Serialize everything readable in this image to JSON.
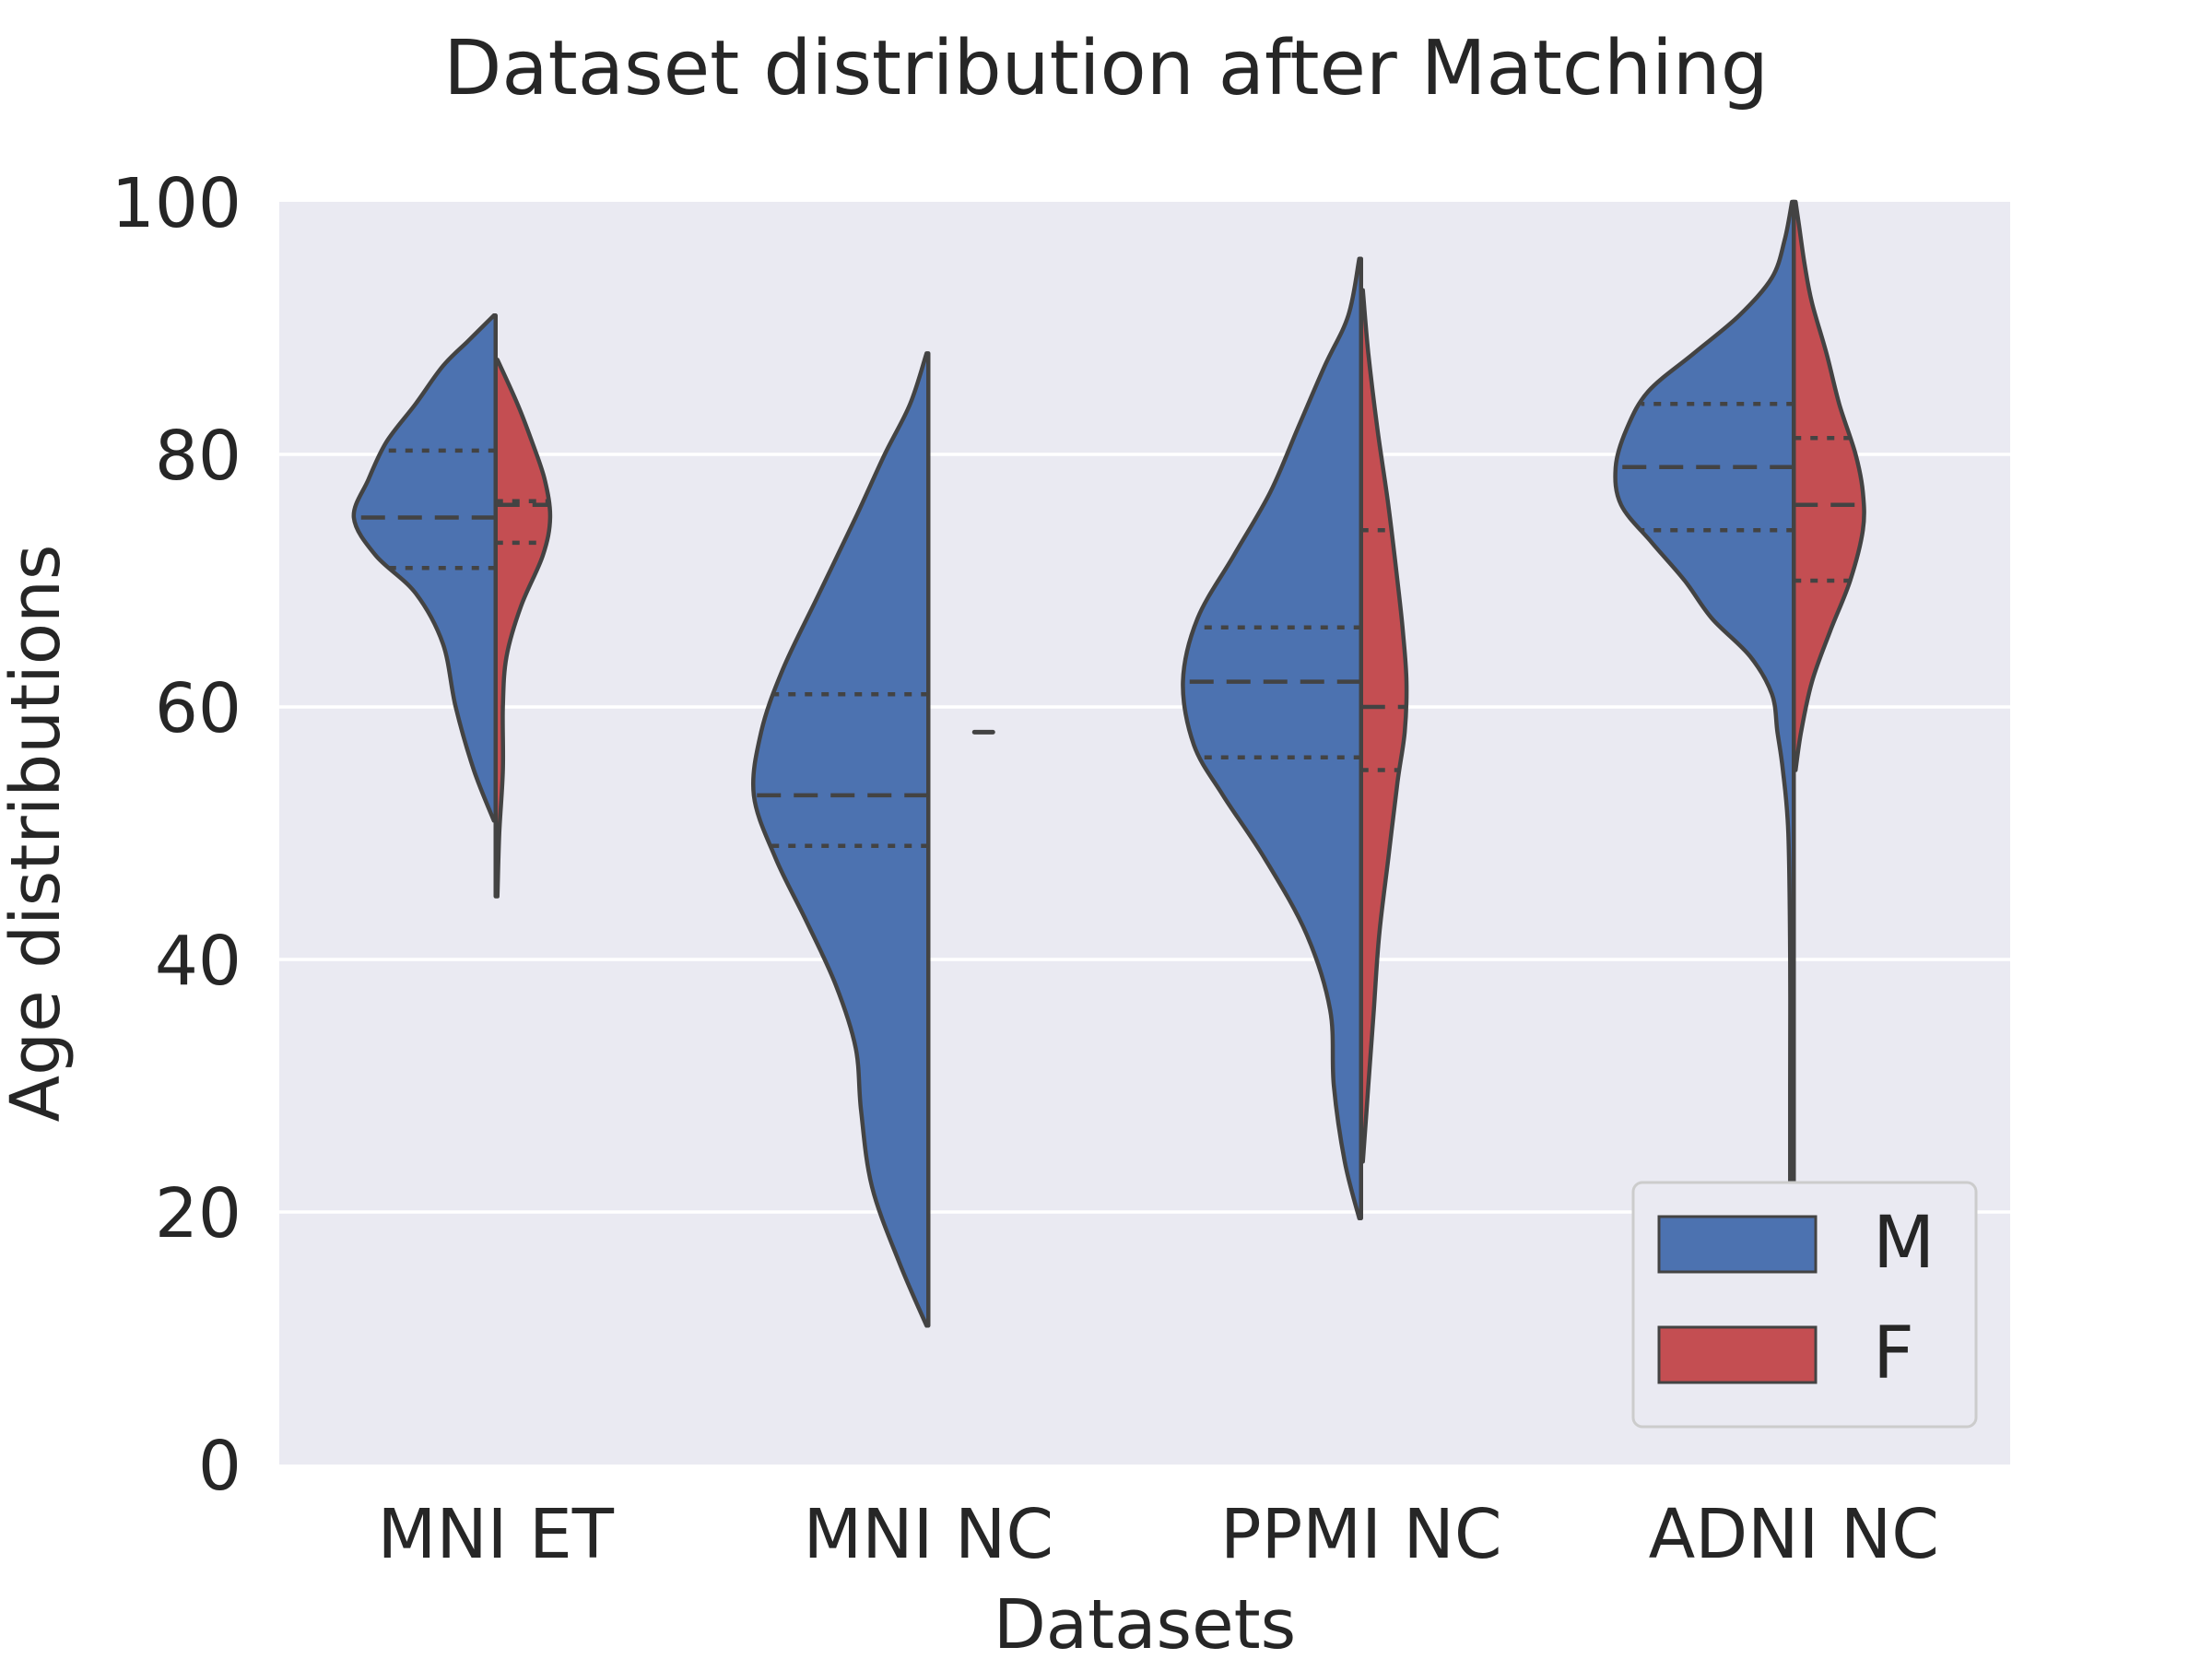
{
  "chart_data": {
    "type": "violin",
    "title": "Dataset distribution after Matching",
    "xlabel": "Datasets",
    "ylabel": "Age distributions",
    "ylim": [
      0,
      100
    ],
    "yticks": [
      0,
      20,
      40,
      60,
      80,
      100
    ],
    "grid": true,
    "split": true,
    "inner": "quartile",
    "legend": {
      "position": "lower-right"
    },
    "categories": [
      "MNI ET",
      "MNI NC",
      "PPMI NC",
      "ADNI NC"
    ],
    "series": [
      {
        "name": "M",
        "color": "#4c72b0",
        "violins": [
          {
            "min": 51,
            "max": 91,
            "q1": 71,
            "median": 75,
            "q3": 80.3,
            "profile": [
              [
                51,
                0.01
              ],
              [
                55,
                0.12
              ],
              [
                60,
                0.22
              ],
              [
                65,
                0.29
              ],
              [
                69,
                0.44
              ],
              [
                72,
                0.66
              ],
              [
                75,
                0.78
              ],
              [
                78,
                0.7
              ],
              [
                81,
                0.6
              ],
              [
                84,
                0.44
              ],
              [
                87,
                0.29
              ],
              [
                89,
                0.15
              ],
              [
                91,
                0.01
              ]
            ]
          },
          {
            "min": 11,
            "max": 88,
            "q1": 49,
            "median": 53,
            "q3": 61,
            "profile": [
              [
                11,
                0.01
              ],
              [
                16,
                0.16
              ],
              [
                22,
                0.31
              ],
              [
                28,
                0.37
              ],
              [
                33,
                0.4
              ],
              [
                38,
                0.51
              ],
              [
                43,
                0.67
              ],
              [
                48,
                0.84
              ],
              [
                53,
                0.96
              ],
              [
                58,
                0.92
              ],
              [
                63,
                0.8
              ],
              [
                69,
                0.6
              ],
              [
                75,
                0.4
              ],
              [
                80,
                0.24
              ],
              [
                84,
                0.1
              ],
              [
                88,
                0.01
              ]
            ]
          },
          {
            "min": 19.5,
            "max": 95.5,
            "q1": 56,
            "median": 62,
            "q3": 66.3,
            "profile": [
              [
                19.5,
                0.01
              ],
              [
                24,
                0.09
              ],
              [
                30,
                0.15
              ],
              [
                36,
                0.17
              ],
              [
                42,
                0.3
              ],
              [
                48,
                0.53
              ],
              [
                53,
                0.76
              ],
              [
                57,
                0.92
              ],
              [
                62,
                0.98
              ],
              [
                67,
                0.9
              ],
              [
                72,
                0.7
              ],
              [
                77,
                0.5
              ],
              [
                82,
                0.35
              ],
              [
                87,
                0.2
              ],
              [
                91,
                0.07
              ],
              [
                95.5,
                0.01
              ]
            ]
          },
          {
            "min": 21,
            "max": 100,
            "q1": 74,
            "median": 79,
            "q3": 84,
            "profile": [
              [
                21,
                0.02
              ],
              [
                30,
                0.02
              ],
              [
                40,
                0.02
              ],
              [
                50,
                0.03
              ],
              [
                55,
                0.06
              ],
              [
                58,
                0.09
              ],
              [
                61,
                0.12
              ],
              [
                64,
                0.24
              ],
              [
                67,
                0.45
              ],
              [
                70,
                0.6
              ],
              [
                73,
                0.78
              ],
              [
                76,
                0.95
              ],
              [
                79,
                0.98
              ],
              [
                82,
                0.92
              ],
              [
                85,
                0.8
              ],
              [
                88,
                0.55
              ],
              [
                91,
                0.3
              ],
              [
                94,
                0.12
              ],
              [
                97,
                0.05
              ],
              [
                100,
                0.01
              ]
            ]
          }
        ]
      },
      {
        "name": "F",
        "color": "#c44e52",
        "violins": [
          {
            "min": 45,
            "max": 87.5,
            "q1": 73,
            "median": 76,
            "q3": 76.3,
            "profile": [
              [
                45,
                0.01
              ],
              [
                50,
                0.02
              ],
              [
                55,
                0.04
              ],
              [
                60,
                0.04
              ],
              [
                64,
                0.06
              ],
              [
                68,
                0.14
              ],
              [
                72,
                0.26
              ],
              [
                75,
                0.3
              ],
              [
                78,
                0.27
              ],
              [
                81,
                0.2
              ],
              [
                84,
                0.12
              ],
              [
                87.5,
                0.01
              ]
            ]
          },
          {
            "min": 58,
            "max": 58,
            "q1": 58,
            "median": 58,
            "q3": 58,
            "profile": []
          },
          {
            "min": 24,
            "max": 93,
            "q1": 55,
            "median": 60,
            "q3": 74,
            "profile": [
              [
                24,
                0.01
              ],
              [
                30,
                0.04
              ],
              [
                36,
                0.07
              ],
              [
                42,
                0.1
              ],
              [
                48,
                0.15
              ],
              [
                54,
                0.2
              ],
              [
                58,
                0.24
              ],
              [
                62,
                0.25
              ],
              [
                66,
                0.23
              ],
              [
                70,
                0.2
              ],
              [
                76,
                0.15
              ],
              [
                82,
                0.09
              ],
              [
                88,
                0.04
              ],
              [
                93,
                0.01
              ]
            ]
          },
          {
            "min": 55,
            "max": 100,
            "q1": 70,
            "median": 76,
            "q3": 81.3,
            "profile": [
              [
                55,
                0.01
              ],
              [
                58,
                0.04
              ],
              [
                62,
                0.1
              ],
              [
                66,
                0.2
              ],
              [
                70,
                0.31
              ],
              [
                74,
                0.38
              ],
              [
                77,
                0.38
              ],
              [
                80,
                0.34
              ],
              [
                84,
                0.25
              ],
              [
                88,
                0.18
              ],
              [
                92,
                0.1
              ],
              [
                95,
                0.06
              ],
              [
                98,
                0.03
              ],
              [
                100,
                0.01
              ]
            ]
          }
        ]
      }
    ]
  }
}
